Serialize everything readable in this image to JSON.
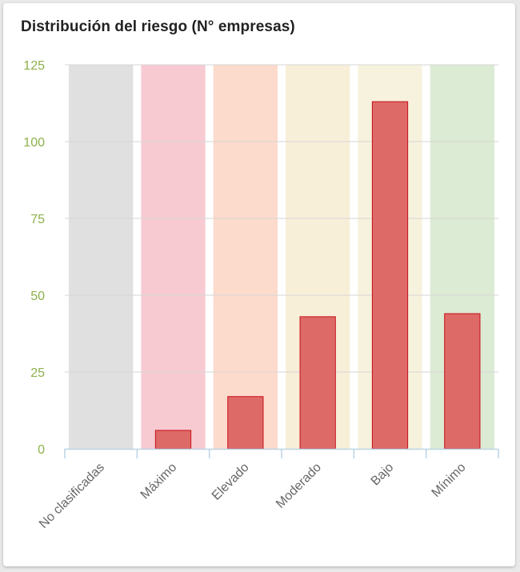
{
  "chart_data": {
    "type": "bar",
    "title": "Distribución del riesgo (N° empresas)",
    "categories": [
      "No clasificadas",
      "Máximo",
      "Elevado",
      "Moderado",
      "Bajo",
      "Mínimo"
    ],
    "values": [
      0,
      6,
      17,
      43,
      113,
      44
    ],
    "ylim": [
      0,
      125
    ],
    "yticks": [
      0,
      25,
      50,
      75,
      100,
      125
    ],
    "grid": true,
    "legend": "none",
    "band_colors": [
      "#e0e0e0",
      "#f7cad2",
      "#fcdacc",
      "#f8efd9",
      "#f7f2dd",
      "#dcebd3"
    ],
    "bar_color": "#dd6a66",
    "bar_border_color": "#c8101a",
    "ytick_color": "#8db04a"
  }
}
